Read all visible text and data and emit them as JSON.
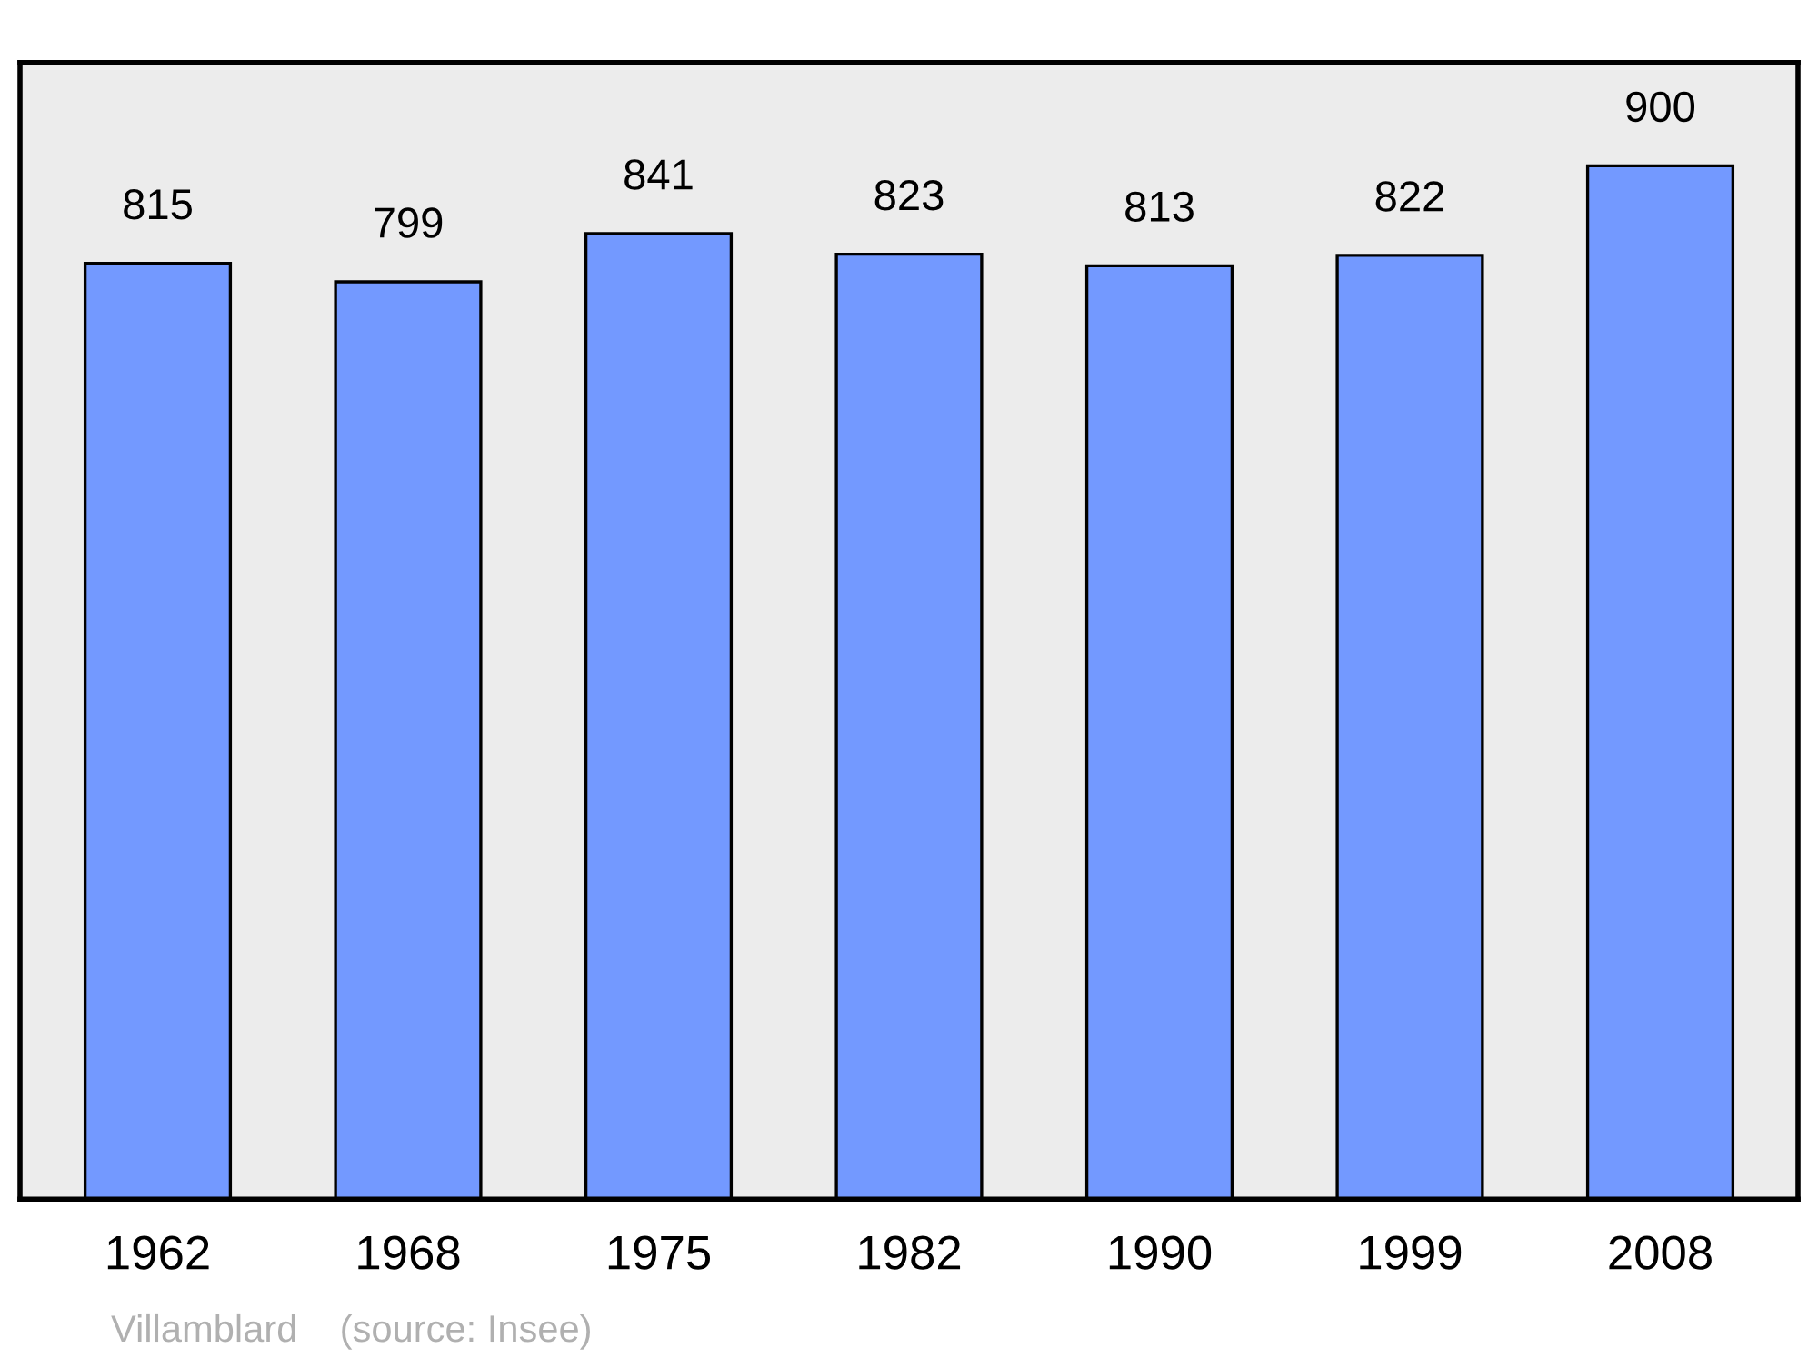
{
  "chart_data": {
    "type": "bar",
    "categories": [
      "1962",
      "1968",
      "1975",
      "1982",
      "1990",
      "1999",
      "2008"
    ],
    "values": [
      815,
      799,
      841,
      823,
      813,
      822,
      900
    ],
    "color": "#7399ff",
    "data_labels": true,
    "tick_labels": "x",
    "grid": false,
    "annotations": [
      "Villamblard    (source: Insee)"
    ]
  }
}
